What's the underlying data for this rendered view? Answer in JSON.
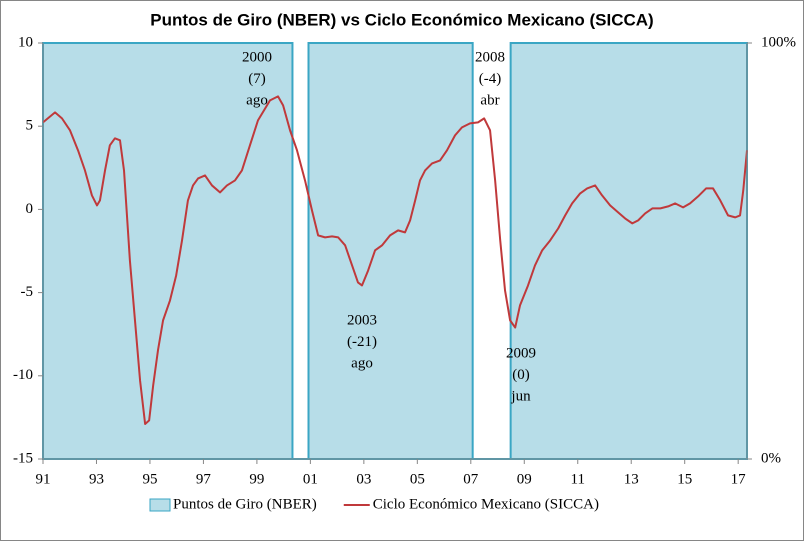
{
  "chart_data": {
    "type": "line",
    "title": "Puntos de Giro (NBER) vs Ciclo Económico Mexicano (SICCA)",
    "xlim": [
      1991,
      2017.33
    ],
    "xticks": [
      {
        "value": 1991,
        "label": "91"
      },
      {
        "value": 1993,
        "label": "93"
      },
      {
        "value": 1995,
        "label": "95"
      },
      {
        "value": 1997,
        "label": "97"
      },
      {
        "value": 1999,
        "label": "99"
      },
      {
        "value": 2001,
        "label": "01"
      },
      {
        "value": 2003,
        "label": "03"
      },
      {
        "value": 2005,
        "label": "05"
      },
      {
        "value": 2007,
        "label": "07"
      },
      {
        "value": 2009,
        "label": "09"
      },
      {
        "value": 2011,
        "label": "11"
      },
      {
        "value": 2013,
        "label": "13"
      },
      {
        "value": 2015,
        "label": "15"
      },
      {
        "value": 2017,
        "label": "17"
      }
    ],
    "ylim": [
      -15,
      10
    ],
    "yticks": [
      -15,
      -10,
      -5,
      0,
      5,
      10
    ],
    "y2lim": [
      0,
      100
    ],
    "y2ticks": [
      {
        "value": 0,
        "label": "0%"
      },
      {
        "value": 100,
        "label": "100%"
      }
    ],
    "series": [
      {
        "name": "Puntos de Giro (NBER)",
        "type": "area",
        "axis": "y2",
        "color": "#b7dde8",
        "edge_color": "#3aa6c4",
        "x": [
          1991,
          2000.33,
          2000.33,
          2000.93,
          2000.93,
          2007.07,
          2007.07,
          2008.49,
          2008.49,
          2017.33
        ],
        "values": [
          100,
          100,
          0,
          0,
          100,
          100,
          0,
          0,
          100,
          100
        ]
      },
      {
        "name": "Ciclo Económico Mexicano (SICCA)",
        "type": "line",
        "color": "#c0393b",
        "x": [
          1991.0,
          1991.45,
          1991.71,
          1992.01,
          1992.31,
          1992.57,
          1992.83,
          1993.02,
          1993.13,
          1993.32,
          1993.5,
          1993.69,
          1993.88,
          1994.03,
          1994.14,
          1994.25,
          1994.44,
          1994.63,
          1994.82,
          1994.97,
          1995.12,
          1995.3,
          1995.49,
          1995.75,
          1995.98,
          1996.2,
          1996.42,
          1996.61,
          1996.8,
          1997.06,
          1997.32,
          1997.62,
          1997.88,
          1998.18,
          1998.44,
          1998.74,
          1999.04,
          1999.49,
          1999.79,
          1999.98,
          2000.24,
          2000.5,
          2000.8,
          2001.06,
          2001.29,
          2001.55,
          2001.81,
          2002.04,
          2002.3,
          2002.56,
          2002.78,
          2002.93,
          2003.16,
          2003.42,
          2003.68,
          2003.98,
          2004.28,
          2004.54,
          2004.73,
          2004.92,
          2005.1,
          2005.29,
          2005.55,
          2005.85,
          2006.11,
          2006.41,
          2006.67,
          2006.97,
          2007.27,
          2007.5,
          2007.72,
          2007.91,
          2008.1,
          2008.28,
          2008.47,
          2008.66,
          2008.84,
          2009.14,
          2009.4,
          2009.67,
          2009.97,
          2010.27,
          2010.53,
          2010.79,
          2011.09,
          2011.35,
          2011.65,
          2011.91,
          2012.21,
          2012.51,
          2012.77,
          2013.04,
          2013.26,
          2013.52,
          2013.79,
          2014.09,
          2014.38,
          2014.64,
          2014.94,
          2015.2,
          2015.5,
          2015.8,
          2016.06,
          2016.33,
          2016.62,
          2016.89,
          2017.07,
          2017.19,
          2017.33
        ],
        "values": [
          5.23,
          5.83,
          5.47,
          4.75,
          3.55,
          2.34,
          0.84,
          0.24,
          0.54,
          2.34,
          3.85,
          4.27,
          4.15,
          2.34,
          -0.36,
          -3.07,
          -6.67,
          -10.28,
          -12.9,
          -12.68,
          -10.58,
          -8.47,
          -6.67,
          -5.47,
          -3.97,
          -1.86,
          0.54,
          1.44,
          1.86,
          2.04,
          1.44,
          1.02,
          1.44,
          1.74,
          2.34,
          3.85,
          5.35,
          6.55,
          6.79,
          6.25,
          4.75,
          3.55,
          1.74,
          -0.06,
          -1.56,
          -1.68,
          -1.62,
          -1.68,
          -2.16,
          -3.37,
          -4.39,
          -4.57,
          -3.67,
          -2.46,
          -2.16,
          -1.56,
          -1.26,
          -1.38,
          -0.66,
          0.54,
          1.74,
          2.34,
          2.76,
          2.94,
          3.55,
          4.45,
          4.93,
          5.17,
          5.23,
          5.47,
          4.75,
          1.74,
          -1.86,
          -4.87,
          -6.67,
          -7.1,
          -5.77,
          -4.57,
          -3.37,
          -2.46,
          -1.86,
          -1.14,
          -0.36,
          0.36,
          0.96,
          1.26,
          1.44,
          0.84,
          0.24,
          -0.18,
          -0.54,
          -0.84,
          -0.66,
          -0.24,
          0.06,
          0.06,
          0.18,
          0.36,
          0.12,
          0.36,
          0.78,
          1.26,
          1.26,
          0.54,
          -0.36,
          -0.48,
          -0.36,
          1.14,
          3.55
        ]
      }
    ],
    "annotations": [
      [
        "2000",
        "(7)",
        "ago"
      ],
      [
        "2003",
        "(-21)",
        "ago"
      ],
      [
        "2008",
        "(-4)",
        "abr"
      ],
      [
        "2009",
        "(0)",
        "jun"
      ]
    ],
    "legend": "bottom"
  }
}
